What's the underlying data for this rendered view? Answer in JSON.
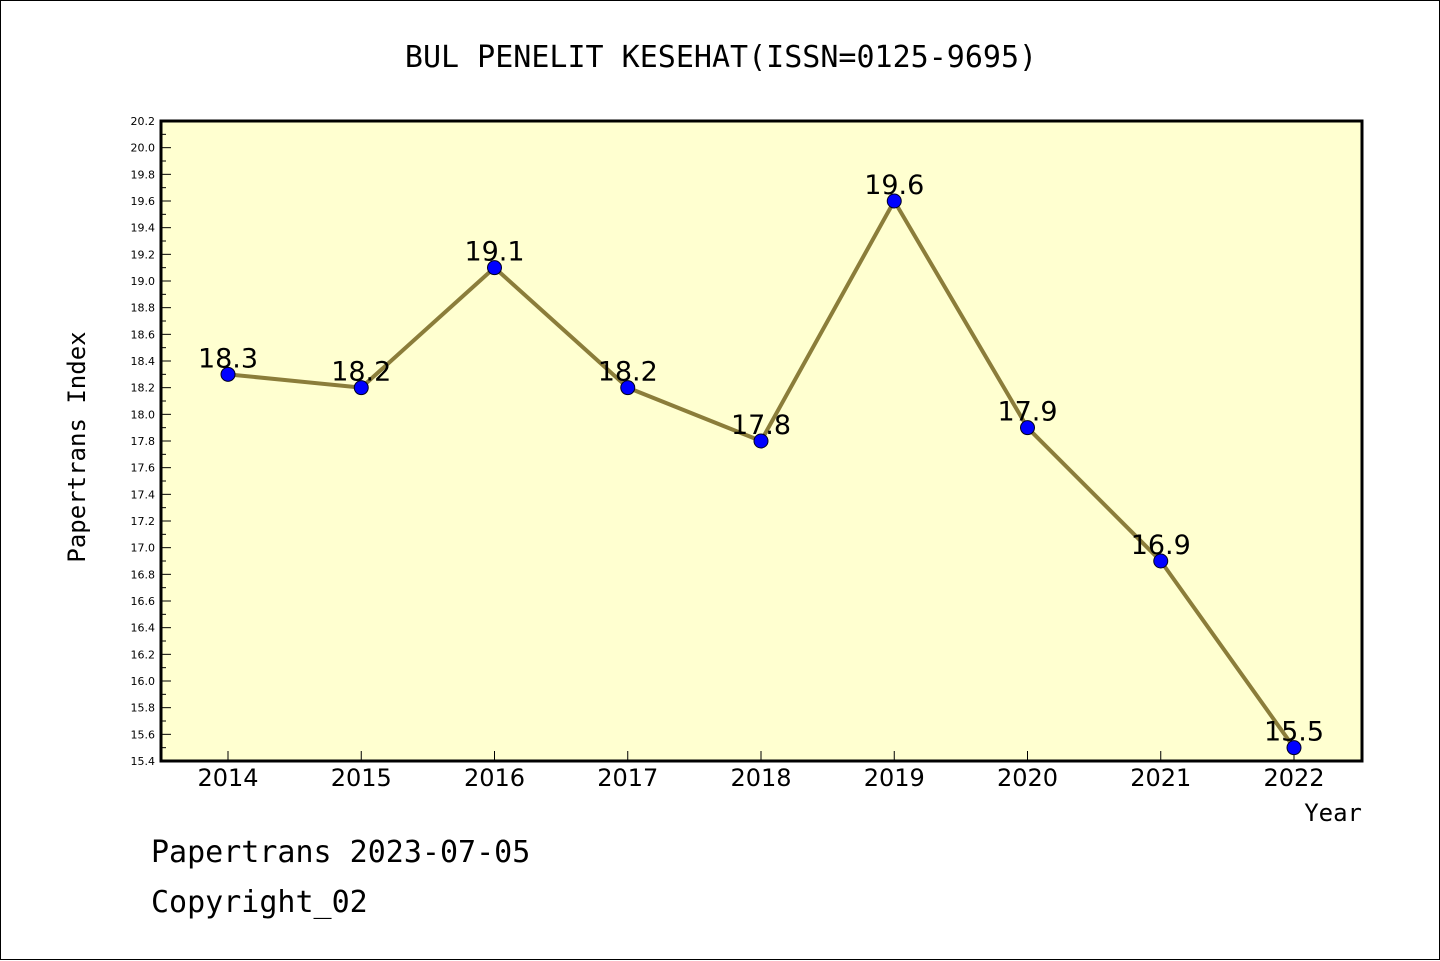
{
  "chart_data": {
    "type": "line",
    "title": "BUL PENELIT KESEHAT(ISSN=0125-9695)",
    "xlabel": "Year",
    "ylabel": "Papertrans Index",
    "categories": [
      "2014",
      "2015",
      "2016",
      "2017",
      "2018",
      "2019",
      "2020",
      "2021",
      "2022"
    ],
    "series": [
      {
        "values": [
          18.3,
          18.2,
          19.1,
          18.2,
          17.8,
          19.6,
          17.9,
          16.9,
          15.5
        ],
        "data_labels": [
          "18.3",
          "18.2",
          "19.1",
          "18.2",
          "17.8",
          "19.6",
          "17.9",
          "16.9",
          "15.5"
        ]
      }
    ],
    "ylim": [
      15.4,
      20.2
    ],
    "yticks": [
      "15.4",
      "15.6",
      "15.8",
      "16.0",
      "16.2",
      "16.4",
      "16.6",
      "16.8",
      "17.0",
      "17.2",
      "17.4",
      "17.6",
      "17.8",
      "18.0",
      "18.2",
      "18.4",
      "18.6",
      "18.8",
      "19.0",
      "19.2",
      "19.4",
      "19.6",
      "19.8",
      "20.0",
      "20.2"
    ],
    "grid": false,
    "legend": "none"
  },
  "colors": {
    "plot_background": "#ffffd0",
    "line": "#8b7d3a",
    "marker": "#0000ff",
    "frame": "#000000"
  },
  "footer": {
    "line1": "Papertrans 2023-07-05",
    "line2": "Copyright_02"
  }
}
